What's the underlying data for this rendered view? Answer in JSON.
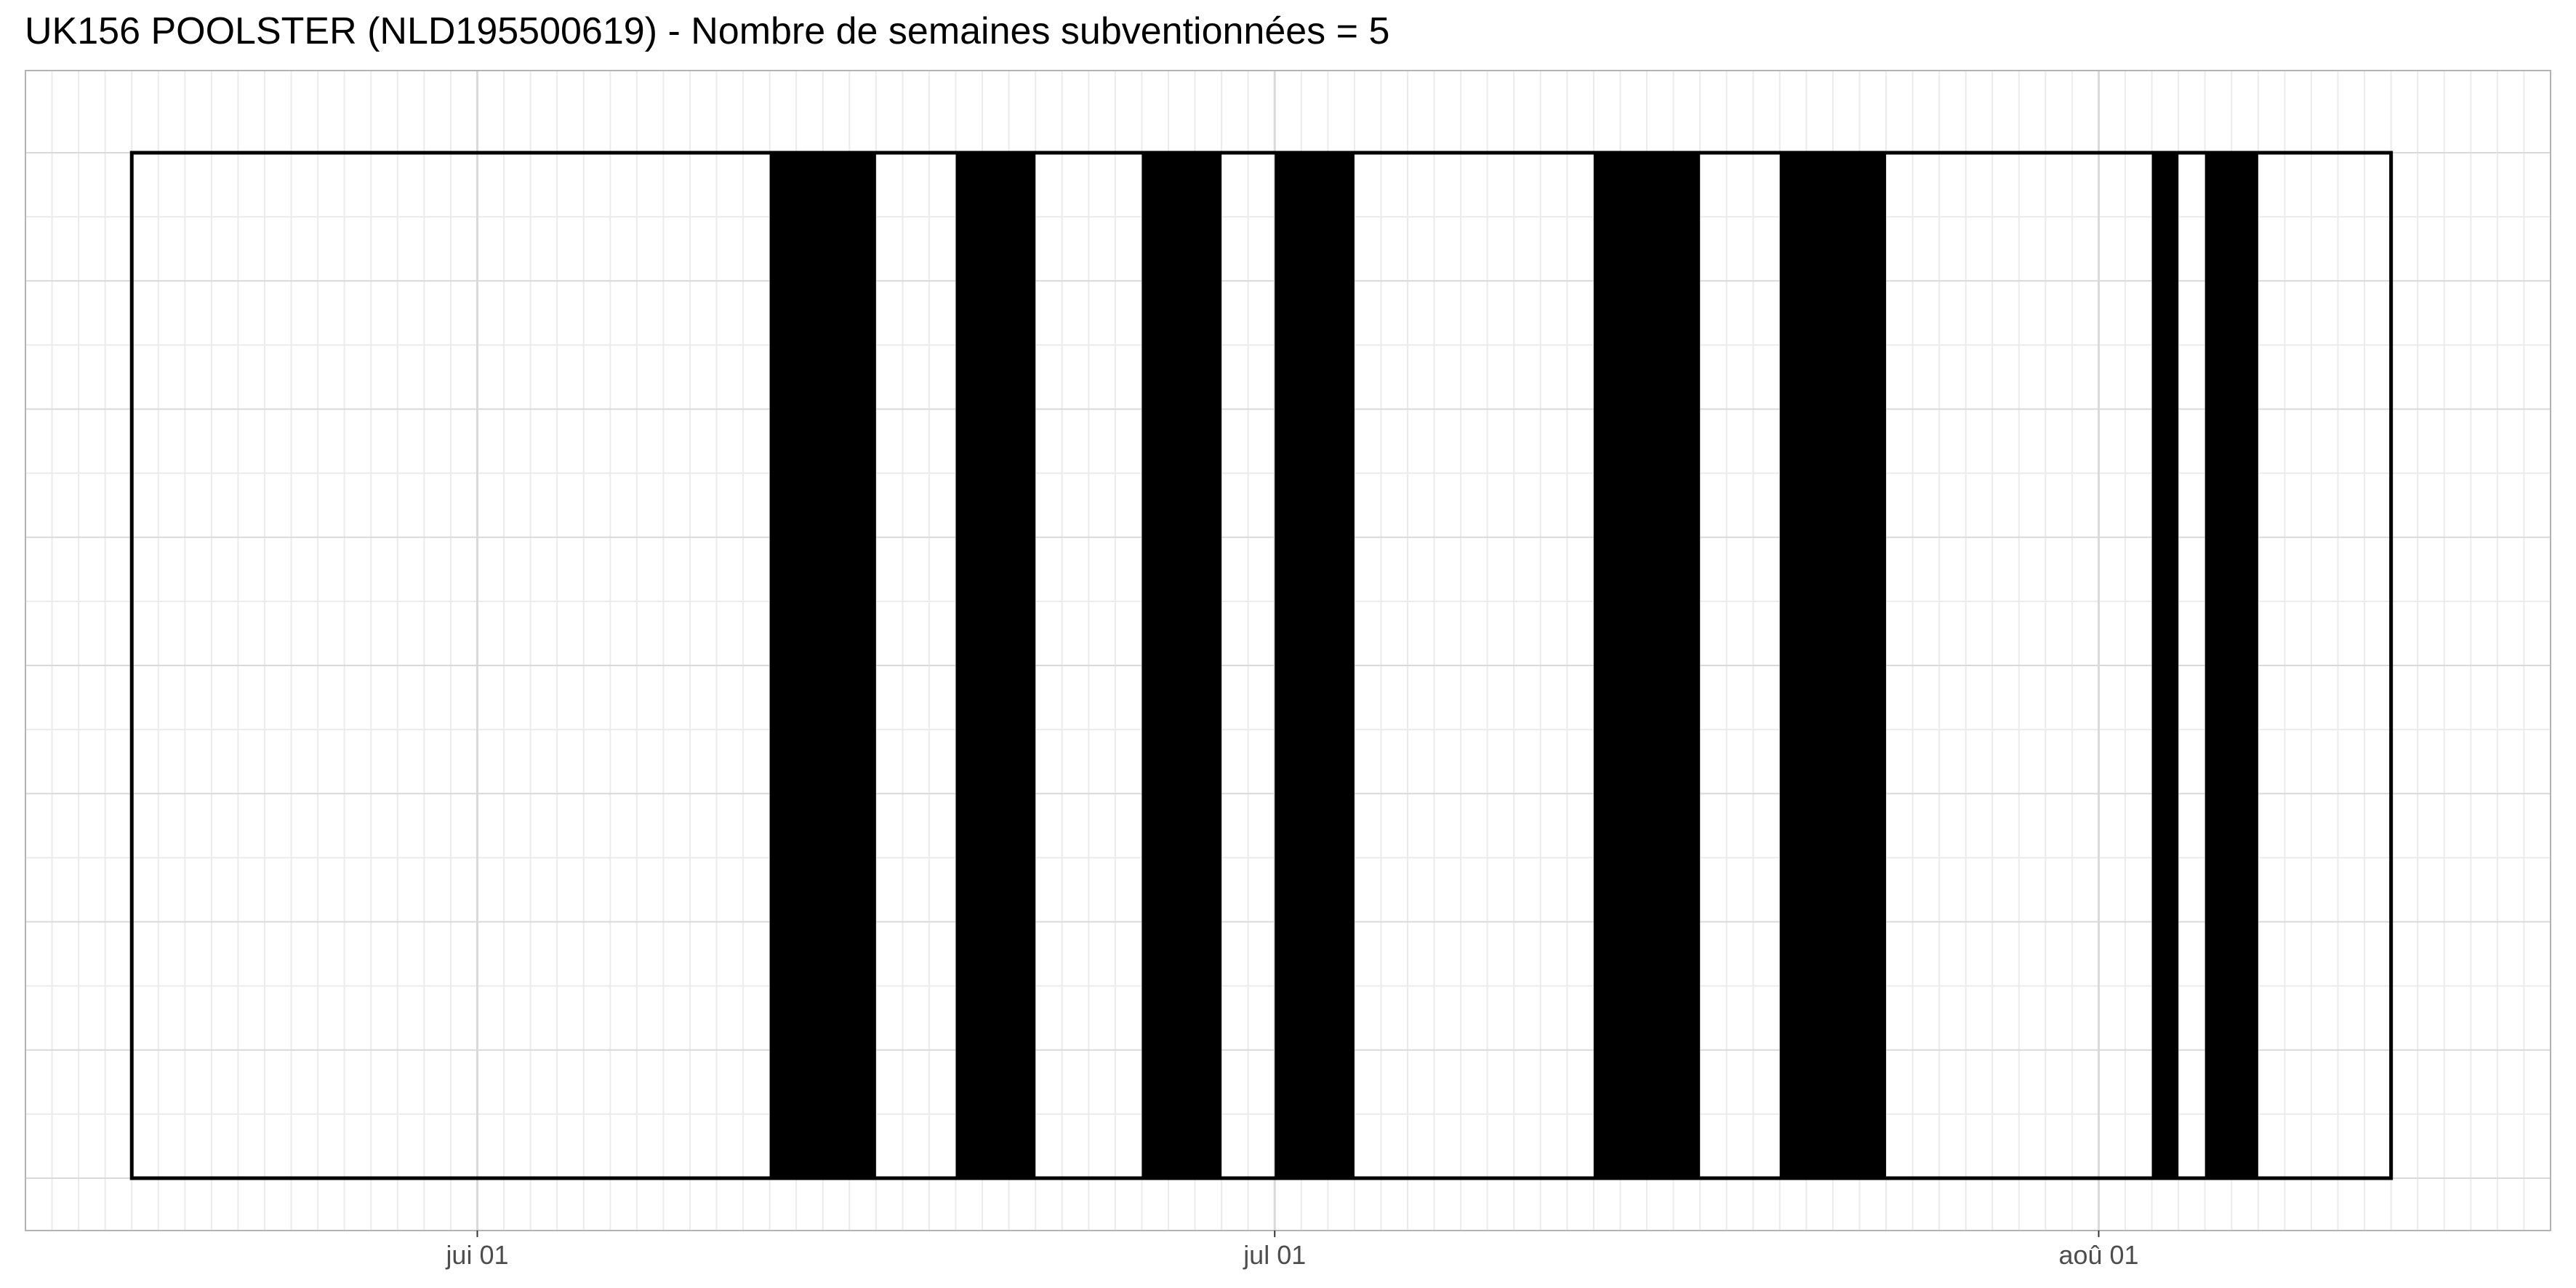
{
  "title": "UK156 POOLSTER (NLD195500619) - Nombre de semaines subventionnées = 5",
  "chart_data": {
    "type": "timeline",
    "title": "UK156 POOLSTER (NLD195500619) - Nombre de semaines subventionnées = 5",
    "xlabel": "",
    "ylabel": "",
    "x_axis": "date",
    "xlim": [
      "2024-05-15",
      "2024-08-18"
    ],
    "period": {
      "start": "2024-05-19",
      "end": "2024-08-12"
    },
    "x_ticks": [
      {
        "date": "2024-06-01",
        "label": "jui 01"
      },
      {
        "date": "2024-07-01",
        "label": "jul 01"
      },
      {
        "date": "2024-08-01",
        "label": "aoû 01"
      }
    ],
    "filled_periods": [
      {
        "start": "2024-06-12",
        "end": "2024-06-16"
      },
      {
        "start": "2024-06-19",
        "end": "2024-06-22"
      },
      {
        "start": "2024-06-26",
        "end": "2024-06-29"
      },
      {
        "start": "2024-07-01",
        "end": "2024-07-04"
      },
      {
        "start": "2024-07-13",
        "end": "2024-07-17"
      },
      {
        "start": "2024-07-20",
        "end": "2024-07-24"
      },
      {
        "start": "2024-08-03",
        "end": "2024-08-04"
      },
      {
        "start": "2024-08-05",
        "end": "2024-08-07"
      }
    ],
    "fill_color": "#000000",
    "outline_color": "#000000",
    "grid": true,
    "grid_color": "#d9d9d9",
    "minor_grid_color": "#ebebeb",
    "panel_border_color": "#b3b3b3",
    "y_ticks_shown": false,
    "legend": "none"
  }
}
